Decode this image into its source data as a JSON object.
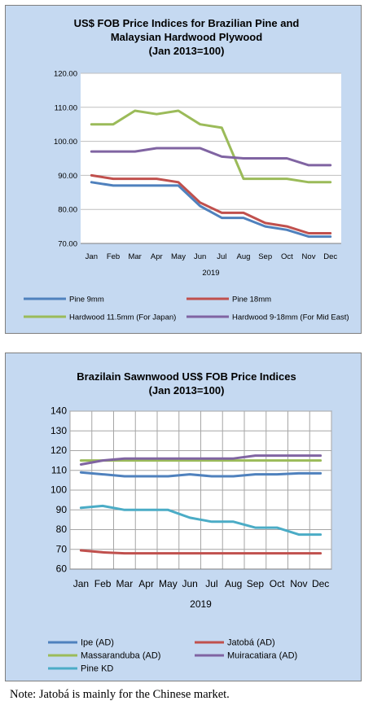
{
  "chart_data": [
    {
      "type": "line",
      "title": [
        "US$ FOB Price Indices for Brazilian  Pine and",
        "Malaysian Hardwood Plywood",
        "(Jan 2013=100)"
      ],
      "xlabel": "2019",
      "categories": [
        "Jan",
        "Feb",
        "Mar",
        "Apr",
        "May",
        "Jun",
        "Jul",
        "Aug",
        "Sep",
        "Oct",
        "Nov",
        "Dec"
      ],
      "ylim": [
        70,
        120
      ],
      "yticks": [
        "70.00",
        "80.00",
        "90.00",
        "100.00",
        "110.00",
        "120.00"
      ],
      "grid": true,
      "legend_position": "bottom",
      "series": [
        {
          "name": "Pine 9mm",
          "color": "#4f81bd",
          "values": [
            88,
            87,
            87,
            87,
            87,
            81,
            77.5,
            77.5,
            75,
            74,
            72,
            72
          ]
        },
        {
          "name": "Pine 18mm",
          "color": "#c0504d",
          "values": [
            90,
            89,
            89,
            89,
            88,
            82,
            79,
            79,
            76,
            75,
            73,
            73
          ]
        },
        {
          "name": "Hardwood 11.5mm (For Japan)",
          "color": "#9bbb59",
          "values": [
            105,
            105,
            109,
            108,
            109,
            105,
            104,
            89,
            89,
            89,
            88,
            88
          ]
        },
        {
          "name": "Hardwood 9-18mm (For Mid East)",
          "color": "#8064a2",
          "values": [
            97,
            97,
            97,
            98,
            98,
            98,
            95.5,
            95,
            95,
            95,
            93,
            93
          ]
        }
      ]
    },
    {
      "type": "line",
      "title": [
        "Brazilain Sawnwood US$ FOB Price Indices",
        "(Jan 2013=100)"
      ],
      "xlabel": "2019",
      "categories": [
        "Jan",
        "Feb",
        "Mar",
        "Apr",
        "May",
        "Jun",
        "Jul",
        "Aug",
        "Sep",
        "Oct",
        "Nov",
        "Dec"
      ],
      "ylim": [
        60,
        140
      ],
      "yticks": [
        "60",
        "70",
        "80",
        "90",
        "100",
        "110",
        "120",
        "130",
        "140"
      ],
      "grid": true,
      "legend_position": "bottom",
      "series": [
        {
          "name": "Ipe (AD)",
          "color": "#4f81bd",
          "values": [
            109,
            108,
            107,
            107,
            107,
            108,
            107,
            107,
            108,
            108,
            108.5,
            108.5
          ]
        },
        {
          "name": "Jatobá (AD)",
          "color": "#c0504d",
          "values": [
            69.5,
            68.5,
            68,
            68,
            68,
            68,
            68,
            68,
            68,
            68,
            68,
            68
          ]
        },
        {
          "name": "Massaranduba (AD)",
          "color": "#9bbb59",
          "values": [
            115,
            115,
            115,
            115,
            115,
            115,
            115,
            115,
            115,
            115,
            115,
            115
          ]
        },
        {
          "name": "Muiracatiara (AD)",
          "color": "#8064a2",
          "values": [
            113,
            115,
            116,
            116,
            116,
            116,
            116,
            116,
            117.5,
            117.5,
            117.5,
            117.5
          ]
        },
        {
          "name": "Pine KD",
          "color": "#4bacc6",
          "values": [
            91,
            92,
            90,
            90,
            90,
            86,
            84,
            84,
            81,
            81,
            77.5,
            77.5
          ]
        }
      ]
    }
  ],
  "note": "Note: Jatobá is mainly for the Chinese market."
}
